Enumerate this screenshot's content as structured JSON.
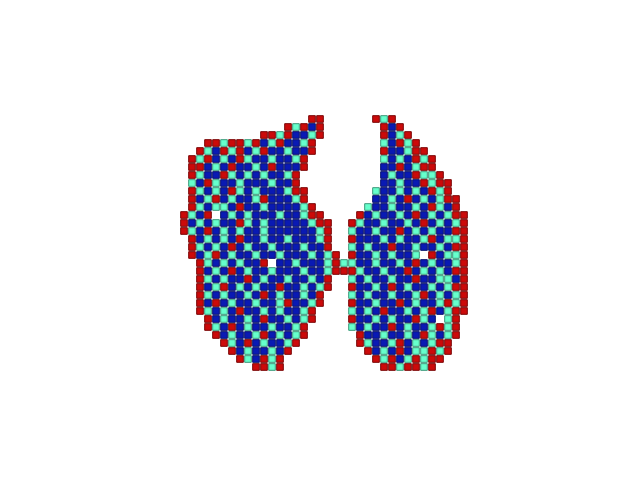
{
  "chart_data": {
    "type": "heatmap",
    "marker": "square",
    "grid": false,
    "tick_labels": false,
    "levels": [
      1,
      2,
      3
    ],
    "colors": [
      "#0a1ab4",
      "#66ffcc",
      "#cc0a0a"
    ],
    "rows": [
      [
        [
          16,
          [
            3,
            3
          ]
        ],
        [
          24,
          [
            3,
            2,
            3
          ]
        ]
      ],
      [
        [
          13,
          [
            3,
            2,
            3,
            1,
            3
          ]
        ],
        [
          25,
          [
            3,
            1,
            3
          ]
        ]
      ],
      [
        [
          10,
          [
            3,
            3,
            2,
            3,
            1,
            1,
            2,
            3
          ]
        ],
        [
          25,
          [
            3,
            1,
            2,
            3
          ]
        ]
      ],
      [
        [
          3,
          [
            3,
            3,
            2,
            3,
            3,
            2,
            3,
            1,
            2,
            3,
            1,
            1,
            2,
            3
          ]
        ],
        [
          25,
          [
            2,
            1,
            3,
            2,
            3
          ]
        ]
      ],
      [
        [
          2,
          [
            3,
            2,
            1,
            3,
            2,
            3,
            1,
            2,
            3,
            1,
            1,
            2,
            1,
            1,
            3
          ]
        ],
        [
          25,
          [
            3,
            1,
            1,
            2,
            3,
            3
          ]
        ]
      ],
      [
        [
          1,
          [
            3,
            2,
            3,
            1,
            2,
            1,
            3,
            2,
            1,
            1,
            2,
            1,
            1,
            2,
            3
          ]
        ],
        [
          25,
          [
            2,
            1,
            2,
            1,
            3,
            2,
            3
          ]
        ]
      ],
      [
        [
          1,
          [
            3,
            3,
            1,
            2,
            1,
            3,
            1,
            1,
            2,
            1,
            3,
            1,
            1,
            1,
            3
          ]
        ],
        [
          25,
          [
            1,
            1,
            3,
            1,
            2,
            3,
            3
          ]
        ]
      ],
      [
        [
          1,
          [
            3,
            2,
            1,
            1,
            3,
            2,
            1,
            2,
            1,
            2,
            1,
            1,
            2,
            3
          ]
        ],
        [
          25,
          [
            1,
            2,
            1,
            1,
            3,
            2,
            2,
            3
          ]
        ]
      ],
      [
        [
          1,
          [
            2,
            1,
            3,
            2,
            1,
            1,
            2,
            1,
            1,
            1,
            2,
            1,
            1,
            3
          ]
        ],
        [
          25,
          [
            1,
            1,
            2,
            1,
            1,
            3,
            2,
            3,
            3
          ]
        ]
      ],
      [
        [
          1,
          [
            3,
            2,
            1,
            2,
            1,
            3,
            2,
            1,
            2,
            1,
            1,
            1,
            2,
            3,
            3
          ]
        ],
        [
          24,
          [
            2,
            1,
            1,
            2,
            1,
            2,
            1,
            3,
            2,
            3
          ]
        ]
      ],
      [
        [
          1,
          [
            3,
            1,
            2,
            3,
            1,
            2,
            1,
            1,
            2,
            3,
            1,
            1,
            1,
            2,
            3
          ]
        ],
        [
          24,
          [
            1,
            1,
            2,
            1,
            3,
            1,
            2,
            1,
            2,
            3,
            3
          ]
        ]
      ],
      [
        [
          1,
          [
            3,
            2,
            1,
            2,
            2,
            1,
            3,
            1,
            1,
            2,
            1,
            1,
            1,
            1,
            2,
            3
          ]
        ],
        [
          23,
          [
            2,
            1,
            1,
            2,
            1,
            1,
            2,
            1,
            3,
            2,
            1,
            3
          ]
        ]
      ],
      [
        [
          0,
          [
            3,
            2,
            1,
            3,
            null,
            1,
            2,
            1,
            2,
            1,
            1,
            1,
            2,
            1,
            1,
            2,
            3,
            3
          ]
        ],
        [
          22,
          [
            3,
            1,
            2,
            1,
            1,
            2,
            1,
            3,
            1,
            2,
            1,
            2,
            3,
            3
          ]
        ]
      ],
      [
        [
          0,
          [
            3,
            1,
            2,
            1,
            2,
            1,
            1,
            3,
            2,
            1,
            2,
            1,
            1,
            1,
            1,
            1,
            2,
            3,
            3
          ]
        ],
        [
          21,
          [
            3,
            2,
            1,
            1,
            2,
            1,
            1,
            2,
            1,
            3,
            1,
            2,
            1,
            2,
            3
          ]
        ]
      ],
      [
        [
          0,
          [
            3,
            2,
            1,
            3,
            1,
            2,
            1,
            2,
            1,
            1,
            2,
            1,
            1,
            1,
            1,
            1,
            1,
            2,
            3
          ]
        ],
        [
          21,
          [
            2,
            1,
            1,
            2,
            1,
            1,
            3,
            1,
            2,
            1,
            2,
            1,
            1,
            3,
            3
          ]
        ]
      ],
      [
        [
          1,
          [
            3,
            1,
            2,
            1,
            2,
            1,
            3,
            1,
            1,
            2,
            1,
            1,
            2,
            1,
            1,
            1,
            2,
            3
          ]
        ],
        [
          21,
          [
            3,
            1,
            1,
            1,
            2,
            1,
            2,
            1,
            1,
            2,
            3,
            1,
            2,
            2,
            3
          ]
        ]
      ],
      [
        [
          1,
          [
            3,
            2,
            1,
            2,
            1,
            3,
            1,
            2,
            1,
            1,
            2,
            1,
            1,
            1,
            2,
            1,
            1,
            3
          ]
        ],
        [
          21,
          [
            2,
            1,
            2,
            1,
            1,
            3,
            1,
            1,
            2,
            1,
            1,
            2,
            1,
            3,
            3
          ]
        ]
      ],
      [
        [
          1,
          [
            3,
            1,
            2,
            3,
            1,
            2,
            1,
            1,
            2,
            1,
            1,
            2,
            1,
            1,
            1,
            2,
            1,
            2,
            3
          ]
        ],
        [
          21,
          [
            3,
            1,
            1,
            2,
            1,
            2,
            1,
            1,
            2,
            null,
            3,
            1,
            2,
            2,
            3
          ]
        ]
      ],
      [
        [
          2,
          [
            3,
            2,
            1,
            2,
            1,
            2,
            1,
            1,
            3,
            null,
            1,
            1,
            2,
            1,
            1,
            1,
            2,
            3
          ]
        ],
        [
          20,
          [
            2
          ]
        ],
        [
          21,
          [
            2,
            1,
            1,
            2,
            1,
            1,
            2,
            1,
            3,
            1,
            2,
            1,
            1,
            2,
            3
          ]
        ]
      ],
      [
        [
          2,
          [
            3,
            1,
            2,
            1,
            3,
            1,
            2,
            1,
            1,
            2,
            1,
            1,
            1,
            2,
            1,
            1,
            2,
            3
          ]
        ],
        [
          20,
          [
            3
          ]
        ],
        [
          21,
          [
            3,
            2,
            1,
            1,
            2,
            1,
            1,
            3,
            1,
            2,
            1,
            2,
            1,
            3,
            3
          ]
        ]
      ],
      [
        [
          2,
          [
            3,
            2,
            1,
            2,
            1,
            1,
            3,
            1,
            2,
            1,
            1,
            2,
            1,
            1,
            2,
            1,
            3
          ]
        ],
        [
          21,
          [
            2,
            1,
            2,
            1,
            1,
            2,
            1,
            1,
            3,
            1,
            1,
            2,
            2,
            1,
            3
          ]
        ]
      ],
      [
        [
          2,
          [
            3,
            1,
            2,
            3,
            1,
            2,
            1,
            2,
            1,
            1,
            3,
            1,
            1,
            2,
            1,
            2,
            3
          ]
        ],
        [
          21,
          [
            3,
            1,
            1,
            2,
            1,
            3,
            1,
            2,
            1,
            1,
            2,
            1,
            2,
            3,
            3
          ]
        ]
      ],
      [
        [
          2,
          [
            3,
            2,
            1,
            2,
            1,
            1,
            2,
            1,
            3,
            1,
            2,
            1,
            1,
            2,
            1,
            3
          ]
        ],
        [
          21,
          [
            2,
            1,
            2,
            1,
            1,
            2,
            1,
            1,
            2,
            3,
            1,
            2,
            1,
            2,
            3
          ]
        ]
      ],
      [
        [
          2,
          [
            3,
            1,
            3,
            1,
            2,
            1,
            1,
            2,
            1,
            1,
            2,
            3,
            1,
            1,
            2,
            3
          ]
        ],
        [
          21,
          [
            3,
            1,
            1,
            2,
            1,
            1,
            3,
            1,
            2,
            1,
            1,
            2,
            3,
            2,
            3
          ]
        ]
      ],
      [
        [
          2,
          [
            3,
            2,
            1,
            2,
            1,
            3,
            1,
            1,
            2,
            1,
            2,
            1,
            1,
            2,
            3
          ]
        ],
        [
          21,
          [
            2,
            1,
            2,
            1,
            3,
            1,
            1,
            2,
            1,
            2,
            3,
            1,
            2,
            3,
            3
          ]
        ]
      ],
      [
        [
          3,
          [
            3,
            1,
            2,
            1,
            1,
            2,
            1,
            3,
            1,
            1,
            2,
            1,
            2,
            3
          ]
        ],
        [
          21,
          [
            3,
            1,
            1,
            2,
            1,
            2,
            1,
            1,
            3,
            2,
            1,
            null,
            2,
            3
          ]
        ]
      ],
      [
        [
          3,
          [
            3,
            2,
            1,
            3,
            1,
            2,
            1,
            1,
            2,
            1,
            1,
            2,
            3
          ]
        ],
        [
          21,
          [
            2,
            1,
            2,
            1,
            1,
            3,
            1,
            2,
            1,
            1,
            2,
            3,
            2,
            3
          ]
        ]
      ],
      [
        [
          4,
          [
            3,
            1,
            2,
            1,
            1,
            2,
            3,
            1,
            2,
            1,
            2,
            3
          ]
        ],
        [
          22,
          [
            3,
            1,
            1,
            2,
            1,
            1,
            2,
            1,
            3,
            2,
            1,
            2,
            3
          ]
        ]
      ],
      [
        [
          5,
          [
            3,
            2,
            1,
            3,
            1,
            2,
            1,
            1,
            2,
            3
          ]
        ],
        [
          22,
          [
            3,
            2,
            1,
            1,
            2,
            3,
            1,
            2,
            1,
            2,
            3,
            3
          ]
        ]
      ],
      [
        [
          6,
          [
            3,
            1,
            2,
            1,
            1,
            2,
            1,
            3
          ]
        ],
        [
          23,
          [
            3,
            1,
            2,
            1,
            3,
            1,
            2,
            2,
            3,
            2,
            3
          ]
        ]
      ],
      [
        [
          7,
          [
            3,
            2,
            1,
            3,
            2,
            3
          ]
        ],
        [
          24,
          [
            3,
            2,
            3,
            1,
            2,
            3,
            2,
            3,
            3
          ]
        ]
      ],
      [
        [
          9,
          [
            3,
            3,
            2,
            3
          ]
        ],
        [
          25,
          [
            3,
            3,
            2,
            3,
            3,
            2,
            3
          ]
        ]
      ]
    ]
  }
}
